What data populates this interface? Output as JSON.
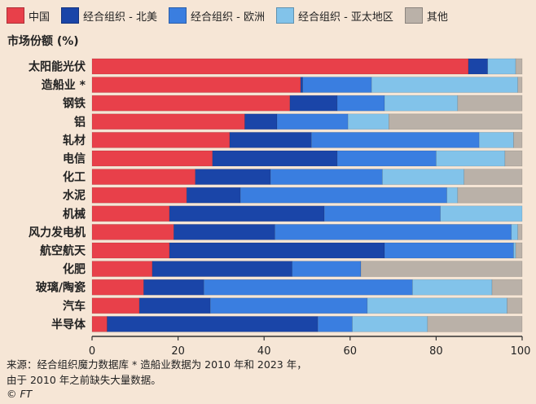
{
  "colors": {
    "china": "#e8404a",
    "na": "#1a45a8",
    "eu": "#3a7ee0",
    "ap": "#82c3ea",
    "other": "#bab1a8"
  },
  "legend": [
    {
      "label": "中国",
      "color_key": "china"
    },
    {
      "label": "经合组织 - 北美",
      "color_key": "na"
    },
    {
      "label": "经合组织 - 欧洲",
      "color_key": "eu"
    },
    {
      "label": "经合组织 - 亚太地区",
      "color_key": "ap"
    },
    {
      "label": "其他",
      "color_key": "other"
    }
  ],
  "chart_data": {
    "type": "bar",
    "orientation": "horizontal-stacked",
    "ylabel": "市场份额 (%)",
    "xlim": [
      0,
      100
    ],
    "xticks": [
      0,
      20,
      40,
      60,
      80,
      100
    ],
    "categories": [
      "太阳能光伏",
      "造船业 *",
      "钢铁",
      "铝",
      "轧材",
      "电信",
      "化工",
      "水泥",
      "机械",
      "风力发电机",
      "航空航天",
      "化肥",
      "玻璃/陶瓷",
      "汽车",
      "半导体"
    ],
    "series": [
      {
        "name": "中国",
        "color_key": "china",
        "values": [
          87.5,
          48.5,
          46,
          35.5,
          32,
          28,
          24,
          22,
          18,
          19,
          18,
          14,
          12,
          11,
          3.5
        ]
      },
      {
        "name": "经合组织 - 北美",
        "color_key": "na",
        "values": [
          4.5,
          0.5,
          11,
          7.5,
          19,
          29,
          17.5,
          12.5,
          36,
          23.5,
          50,
          32.5,
          14,
          16.5,
          49
        ]
      },
      {
        "name": "经合组织 - 欧洲",
        "color_key": "eu",
        "values": [
          0,
          16,
          11,
          16.5,
          39,
          23,
          26,
          48,
          27,
          55,
          30,
          16,
          48.5,
          36.5,
          8
        ]
      },
      {
        "name": "经合组织 - 亚太地区",
        "color_key": "ap",
        "values": [
          6.5,
          34,
          17,
          9.5,
          8,
          16,
          19,
          2.5,
          19,
          1.5,
          0.5,
          0,
          18.5,
          32.5,
          17.5
        ]
      },
      {
        "name": "其他",
        "color_key": "other",
        "values": [
          1.5,
          1,
          15,
          31,
          2,
          4,
          13.5,
          15,
          0,
          1,
          1.5,
          37.5,
          7,
          3.5,
          22
        ]
      }
    ]
  },
  "footer": {
    "source_line1": "来源：经合组织魔力数据库 * 造船业数据为 2010 年和 2023 年，",
    "source_line2": "由于 2010 年之前缺失大量数据。",
    "credit": "© FT"
  }
}
